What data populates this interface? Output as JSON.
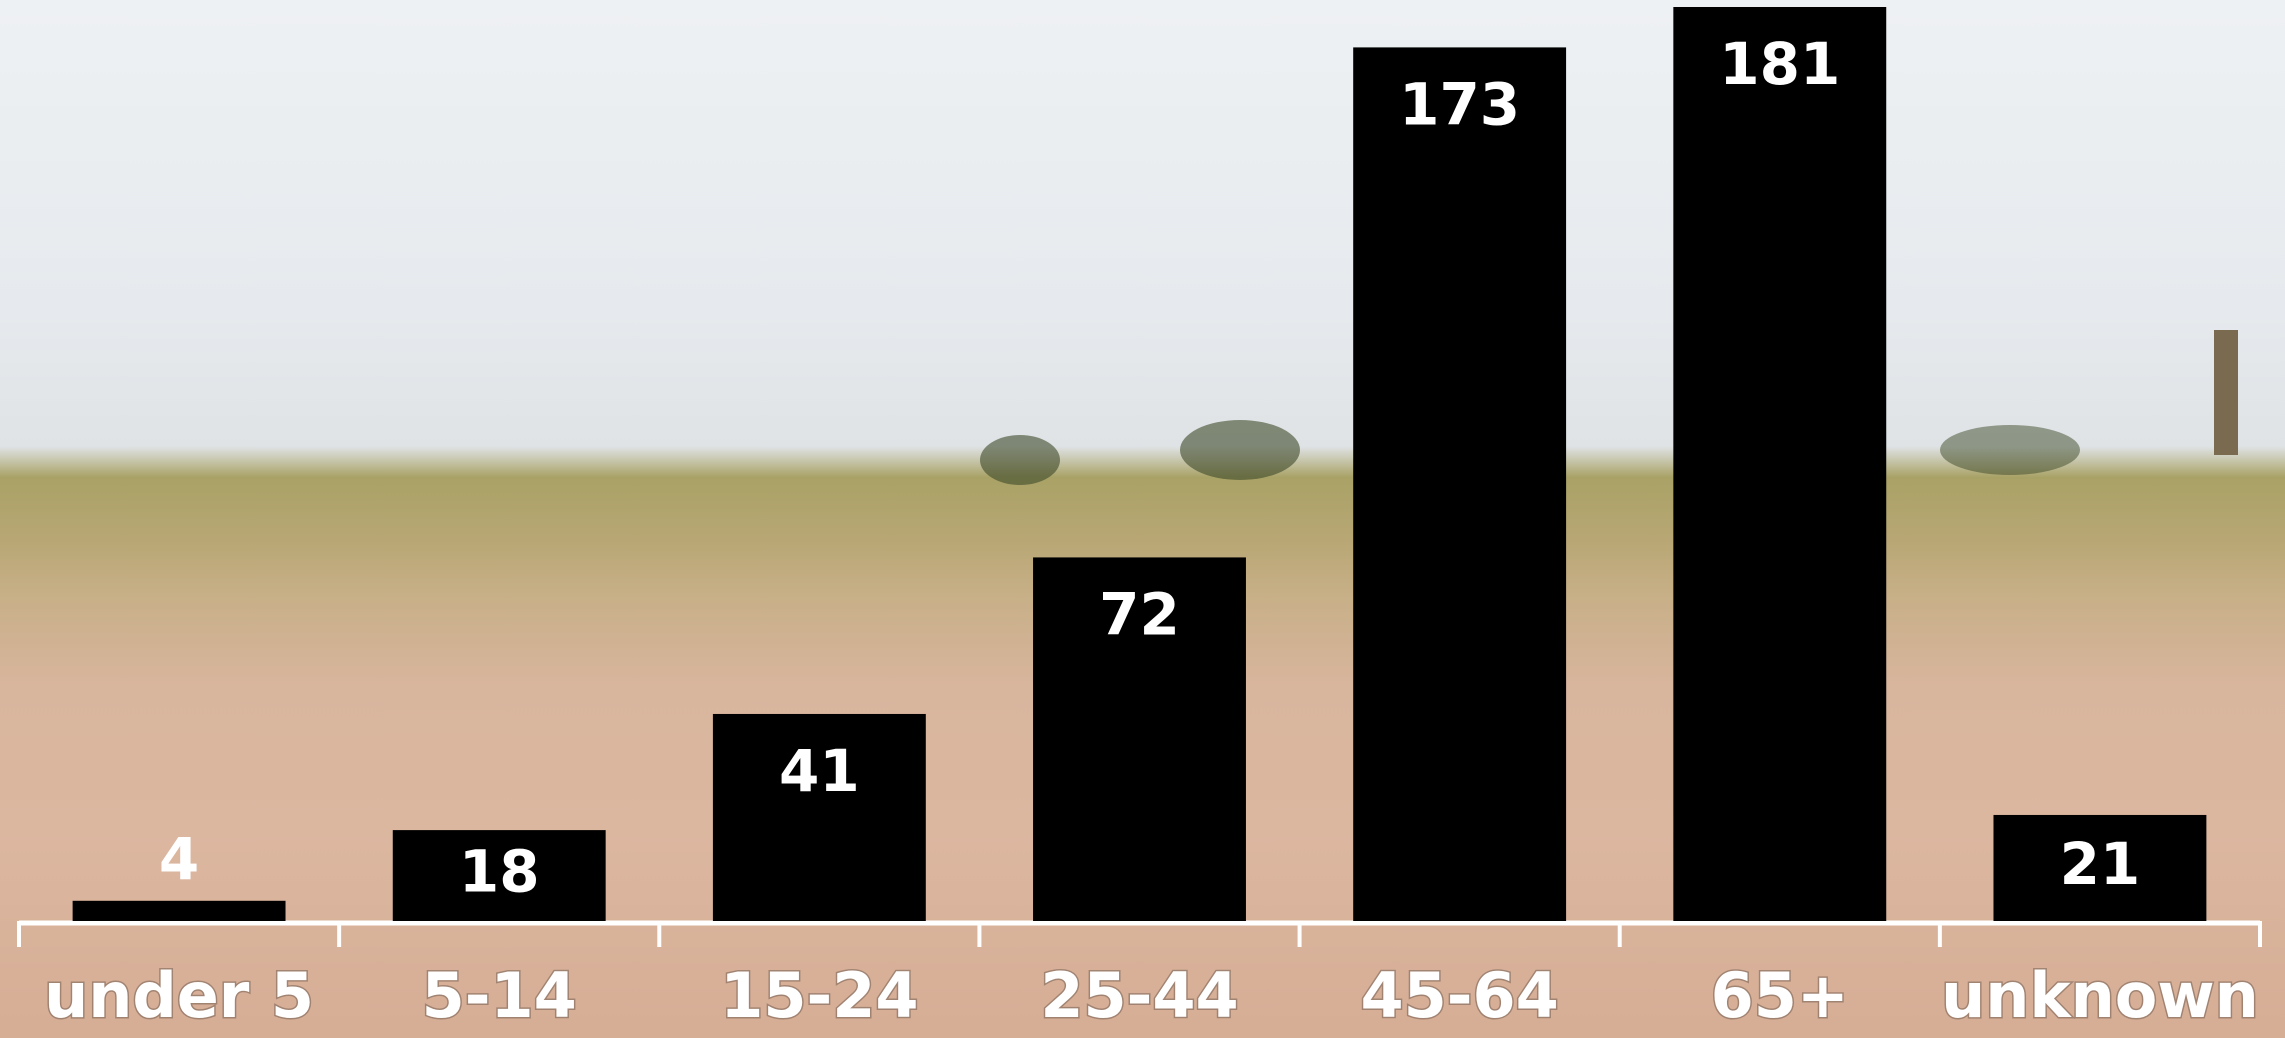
{
  "chart_data": {
    "type": "bar",
    "categories": [
      "under 5",
      "5-14",
      "15-24",
      "25-44",
      "45-64",
      "65+",
      "unknown"
    ],
    "values": [
      4,
      18,
      41,
      72,
      173,
      181,
      21
    ],
    "color": "#000000"
  }
}
